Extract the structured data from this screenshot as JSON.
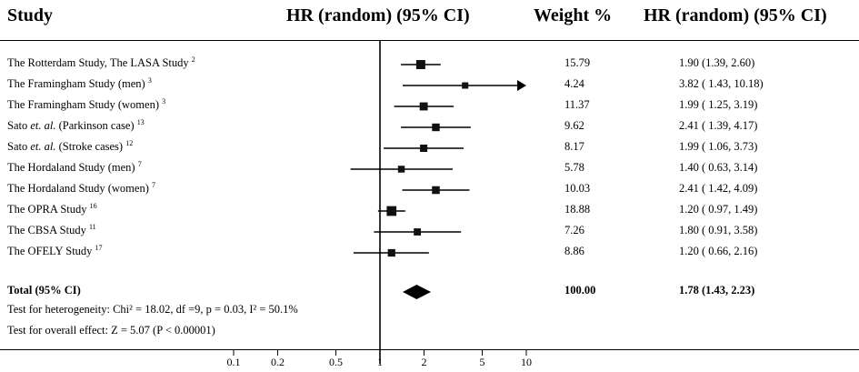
{
  "headers": {
    "study": "Study",
    "hr_plot": "HR (random) (95% CI)",
    "weight": "Weight %",
    "hr_text": "HR (random) (95% CI)"
  },
  "studies": [
    {
      "name": "The Rotterdam Study, The LASA Study",
      "ref": "2",
      "weight": "15.79",
      "ci_text": "1.90 (1.39, 2.60)"
    },
    {
      "name": "The Framingham Study (men)",
      "ref": "3",
      "weight": "4.24",
      "ci_text": "3.82 ( 1.43, 10.18)"
    },
    {
      "name": "The Framingham Study (women)",
      "ref": "3",
      "weight": "11.37",
      "ci_text": "1.99 ( 1.25, 3.19)"
    },
    {
      "name": "Sato et. al. (Parkinson case)",
      "ref": "13",
      "weight": "9.62",
      "ci_text": "2.41 ( 1.39, 4.17)"
    },
    {
      "name": "Sato et. al. (Stroke cases)",
      "ref": "12",
      "weight": "8.17",
      "ci_text": "1.99 ( 1.06, 3.73)"
    },
    {
      "name": "The Hordaland Study (men)",
      "ref": "7",
      "weight": "5.78",
      "ci_text": "1.40 ( 0.63, 3.14)"
    },
    {
      "name": "The Hordaland Study (women)",
      "ref": "7",
      "weight": "10.03",
      "ci_text": "2.41 ( 1.42, 4.09)"
    },
    {
      "name": "The OPRA Study",
      "ref": "16",
      "weight": "18.88",
      "ci_text": "1.20 ( 0.97, 1.49)"
    },
    {
      "name": "The CBSA Study",
      "ref": "11",
      "weight": "7.26",
      "ci_text": "1.80 ( 0.91, 3.58)"
    },
    {
      "name": "The OFELY Study",
      "ref": "17",
      "weight": "8.86",
      "ci_text": "1.20 ( 0.66, 2.16)"
    }
  ],
  "total": {
    "label": "Total (95% CI)",
    "weight": "100.00",
    "ci_text": "1.78 (1.43, 2.23)"
  },
  "heterogeneity": "Test for heterogeneity: Chi² = 18.02, df =9, p = 0.03, I² = 50.1%",
  "overall_effect": "Test for overall effect: Z = 5.07 (P < 0.00001)",
  "chart_data": {
    "type": "forest",
    "scale": "log",
    "xlim": [
      0.1,
      10
    ],
    "ticks": [
      0.1,
      0.2,
      0.5,
      1,
      2,
      5,
      10
    ],
    "tick_labels": [
      "0.1",
      "0.2",
      "0.5",
      "1",
      "2",
      "5",
      "10"
    ],
    "reference_line": 1,
    "series": [
      {
        "study": "The Rotterdam Study, The LASA Study",
        "hr": 1.9,
        "lower": 1.39,
        "upper": 2.6,
        "weight": 15.79
      },
      {
        "study": "The Framingham Study (men)",
        "hr": 3.82,
        "lower": 1.43,
        "upper": 10.18,
        "weight": 4.24
      },
      {
        "study": "The Framingham Study (women)",
        "hr": 1.99,
        "lower": 1.25,
        "upper": 3.19,
        "weight": 11.37
      },
      {
        "study": "Sato et. al. (Parkinson case)",
        "hr": 2.41,
        "lower": 1.39,
        "upper": 4.17,
        "weight": 9.62
      },
      {
        "study": "Sato et. al. (Stroke cases)",
        "hr": 1.99,
        "lower": 1.06,
        "upper": 3.73,
        "weight": 8.17
      },
      {
        "study": "The Hordaland Study (men)",
        "hr": 1.4,
        "lower": 0.63,
        "upper": 3.14,
        "weight": 5.78
      },
      {
        "study": "The Hordaland Study (women)",
        "hr": 2.41,
        "lower": 1.42,
        "upper": 4.09,
        "weight": 10.03
      },
      {
        "study": "The OPRA Study",
        "hr": 1.2,
        "lower": 0.97,
        "upper": 1.49,
        "weight": 18.88
      },
      {
        "study": "The CBSA Study",
        "hr": 1.8,
        "lower": 0.91,
        "upper": 3.58,
        "weight": 7.26
      },
      {
        "study": "The OFELY Study",
        "hr": 1.2,
        "lower": 0.66,
        "upper": 2.16,
        "weight": 8.86
      }
    ],
    "pooled": {
      "hr": 1.78,
      "lower": 1.43,
      "upper": 2.23,
      "weight": 100.0
    }
  }
}
